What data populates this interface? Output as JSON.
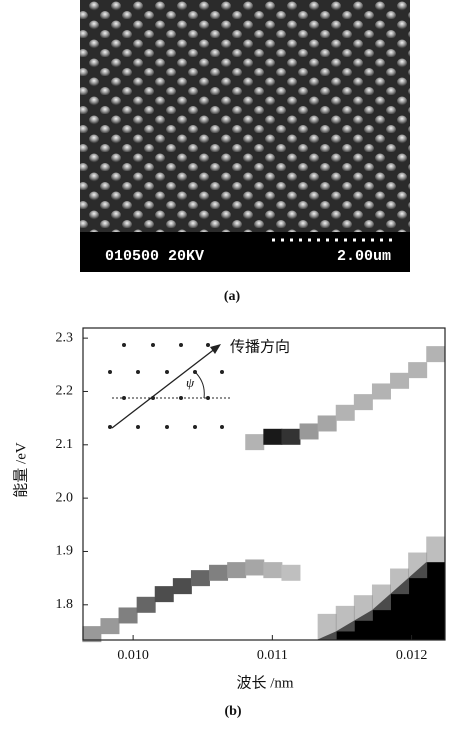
{
  "figure_a": {
    "caption": "(a)",
    "sem_info": "010500 20KV",
    "scale_label": "2.00um"
  },
  "chart_data": {
    "type": "heatmap",
    "caption": "(b)",
    "x_label": "波长 /nm",
    "y_label": "能量 /eV",
    "annotations": [
      "传播方向",
      "ψ"
    ],
    "xlim": [
      0.00964,
      0.01224
    ],
    "ylim": [
      1.734,
      2.319
    ],
    "xticks": [
      {
        "value": 0.01,
        "label": "0.010"
      },
      0.011,
      0.012
    ],
    "yticks": [
      1.8,
      1.9,
      {
        "value": 2,
        "label": "2.0"
      },
      2.1,
      2.2,
      2.3
    ],
    "series": [
      {
        "x": [
          0.0097,
          0.00983,
          0.00996,
          0.01009,
          0.01022,
          0.01035,
          0.01048,
          0.01061,
          0.01074,
          0.01087,
          0.011,
          0.01113
        ],
        "values": [
          1.745,
          1.76,
          1.78,
          1.8,
          1.82,
          1.835,
          1.85,
          1.86,
          1.865,
          1.87,
          1.865,
          1.86
        ],
        "shade": [
          0.4,
          0.4,
          0.5,
          0.6,
          0.7,
          0.7,
          0.6,
          0.5,
          0.4,
          0.35,
          0.3,
          0.25
        ]
      },
      {
        "x": [
          0.01087,
          0.011,
          0.01113,
          0.01126,
          0.01139,
          0.01152,
          0.01165,
          0.01178,
          0.01191,
          0.01204,
          0.01217
        ],
        "values": [
          2.105,
          2.115,
          2.115,
          2.125,
          2.14,
          2.16,
          2.18,
          2.2,
          2.22,
          2.24,
          2.27
        ],
        "shade": [
          0.3,
          0.9,
          0.8,
          0.4,
          0.35,
          0.3,
          0.3,
          0.3,
          0.3,
          0.3,
          0.3
        ]
      },
      {
        "x": [
          0.01139,
          0.01152,
          0.01165,
          0.01178,
          0.01191,
          0.01204,
          0.01217
        ],
        "values": [
          1.735,
          1.75,
          1.77,
          1.79,
          1.82,
          1.85,
          1.88
        ],
        "shade": [
          1,
          1,
          1,
          1,
          1,
          1,
          1
        ],
        "fill_below": true
      }
    ]
  }
}
